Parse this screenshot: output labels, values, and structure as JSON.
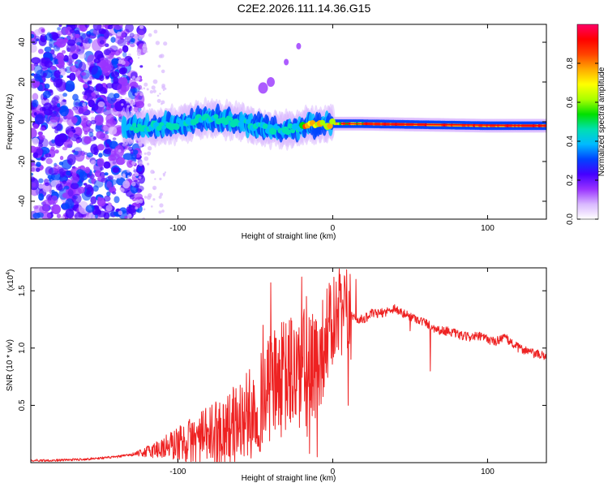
{
  "title": "C2E2.2026.111.14.36.G15",
  "chart_data": [
    {
      "type": "heatmap",
      "name": "spectrogram",
      "xlabel": "Height of straight line (km)",
      "ylabel": "Frequency (Hz)",
      "xlim": [
        -195,
        138
      ],
      "ylim": [
        -49,
        49
      ],
      "xticks": [
        -100,
        0,
        100
      ],
      "yticks": [
        -40,
        -20,
        0,
        20,
        40
      ],
      "description_series": [
        {
          "name": "ridge center (Hz)",
          "x": [
            -135,
            -120,
            -100,
            -80,
            -60,
            -45,
            -30,
            -15,
            0,
            20,
            60,
            100,
            138
          ],
          "y": [
            -3,
            -3,
            -1,
            2,
            0,
            -3,
            -4,
            -2,
            -1,
            -1,
            -1.5,
            -2,
            -2
          ]
        },
        {
          "name": "noise region right edge (km)",
          "x": [
            -133
          ]
        }
      ],
      "colorbar": {
        "label": "Normalized spectral amplitude",
        "range": [
          0.0,
          1.0
        ],
        "ticks": [
          0.0,
          0.2,
          0.4,
          0.6,
          0.8
        ],
        "tick_labels": [
          "0.0",
          "0.2",
          "0.4",
          "0.6",
          "0.8"
        ],
        "colors": [
          "#ffffff",
          "#d9b8ff",
          "#9933ff",
          "#4400ff",
          "#0044ff",
          "#00bbff",
          "#00e0b0",
          "#00e000",
          "#aaff00",
          "#ffff00",
          "#ffaa00",
          "#ff4400",
          "#ff0000",
          "#ff0066"
        ]
      }
    },
    {
      "type": "line",
      "name": "snr",
      "xlabel": "Height of straight line (km)",
      "ylabel": "SNR (10 * v/v)",
      "scale_label": "(x10",
      "scale_exp": "4",
      "scale_close": ")",
      "xlim": [
        -195,
        138
      ],
      "ylim": [
        0,
        1.7
      ],
      "xticks": [
        -100,
        0,
        100
      ],
      "yticks": [
        0.5,
        1.0,
        1.5
      ],
      "ytick_labels": [
        "0.5",
        "1.0",
        "1.5"
      ],
      "color": "#ee2222",
      "series": [
        {
          "name": "SNR",
          "x": [
            -195,
            -180,
            -160,
            -150,
            -140,
            -130,
            -120,
            -110,
            -100,
            -90,
            -80,
            -75,
            -70,
            -65,
            -60,
            -55,
            -50,
            -45,
            -40,
            -35,
            -30,
            -25,
            -20,
            -15,
            -12,
            -10,
            -8,
            -5,
            0,
            5,
            8,
            10,
            12,
            15,
            20,
            25,
            30,
            35,
            40,
            45,
            50,
            55,
            60,
            65,
            70,
            75,
            80,
            85,
            90,
            95,
            100,
            105,
            110,
            115,
            120,
            125,
            130,
            138
          ],
          "y": [
            0.02,
            0.02,
            0.03,
            0.04,
            0.05,
            0.07,
            0.1,
            0.14,
            0.18,
            0.22,
            0.26,
            0.3,
            0.32,
            0.35,
            0.4,
            0.45,
            0.5,
            0.6,
            0.7,
            0.75,
            0.8,
            0.85,
            0.85,
            0.8,
            0.75,
            0.95,
            0.9,
            1.1,
            1.2,
            1.25,
            1.25,
            1.3,
            1.3,
            1.25,
            1.25,
            1.3,
            1.3,
            1.32,
            1.35,
            1.3,
            1.28,
            1.25,
            1.22,
            1.18,
            1.15,
            1.15,
            1.12,
            1.1,
            1.1,
            1.1,
            1.08,
            1.05,
            1.1,
            1.05,
            1.0,
            0.98,
            0.95,
            0.93
          ],
          "spikes": [
            {
              "x": -40,
              "y": 1.57
            },
            {
              "x": -20,
              "y": 1.62
            },
            {
              "x": -17,
              "y": 1.45
            },
            {
              "x": -45,
              "y": 1.2
            },
            {
              "x": 10,
              "y": 1.7
            },
            {
              "x": 15,
              "y": 1.6
            },
            {
              "x": 5,
              "y": 1.4
            }
          ],
          "dips": [
            {
              "x": -15,
              "y": 0.08
            },
            {
              "x": -10,
              "y": 0.05
            },
            {
              "x": 10,
              "y": 0.5
            },
            {
              "x": 63,
              "y": 0.8
            },
            {
              "x": 50,
              "y": 1.15
            }
          ]
        }
      ]
    }
  ]
}
